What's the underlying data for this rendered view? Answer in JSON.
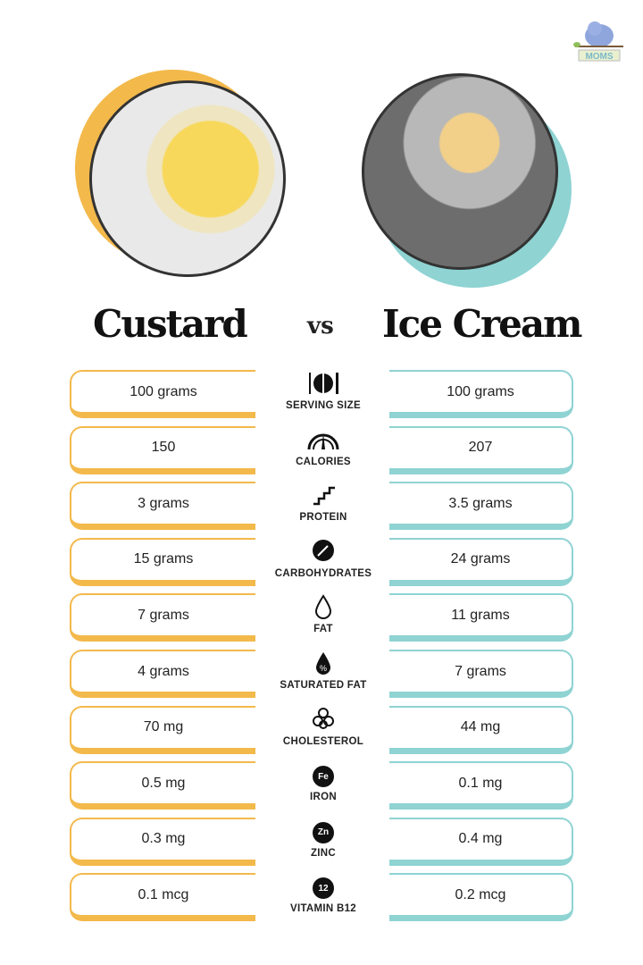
{
  "logo": {
    "text": "MOMS",
    "subtext": "who think"
  },
  "left": {
    "title": "Custard",
    "accent": "#f3b94b"
  },
  "vs": "vs",
  "right": {
    "title": "Ice Cream",
    "accent": "#8fd3d3"
  },
  "rows": [
    {
      "label": "SERVING SIZE",
      "icon": "plate-cutlery-icon",
      "custard": "100 grams",
      "ice_cream": "100 grams"
    },
    {
      "label": "CALORIES",
      "icon": "gauge-icon",
      "custard": "150",
      "ice_cream": "207"
    },
    {
      "label": "PROTEIN",
      "icon": "protein-icon",
      "custard": "3 grams",
      "ice_cream": "3.5 grams"
    },
    {
      "label": "CARBOHYDRATES",
      "icon": "wheat-icon",
      "custard": "15 grams",
      "ice_cream": "24 grams"
    },
    {
      "label": "FAT",
      "icon": "drop-icon",
      "custard": "7 grams",
      "ice_cream": "11 grams"
    },
    {
      "label": "SATURATED FAT",
      "icon": "percent-drop-icon",
      "custard": "4 grams",
      "ice_cream": "7 grams"
    },
    {
      "label": "CHOLESTEROL",
      "icon": "molecule-icon",
      "custard": "70 mg",
      "ice_cream": "44 mg"
    },
    {
      "label": "IRON",
      "icon": "fe-icon",
      "symbol": "Fe",
      "custard": "0.5 mg",
      "ice_cream": "0.1 mg"
    },
    {
      "label": "ZINC",
      "icon": "zn-icon",
      "symbol": "Zn",
      "custard": "0.3 mg",
      "ice_cream": "0.4 mg"
    },
    {
      "label": "VITAMIN B12",
      "icon": "b12-icon",
      "symbol": "12",
      "custard": "0.1 mcg",
      "ice_cream": "0.2 mcg"
    }
  ]
}
